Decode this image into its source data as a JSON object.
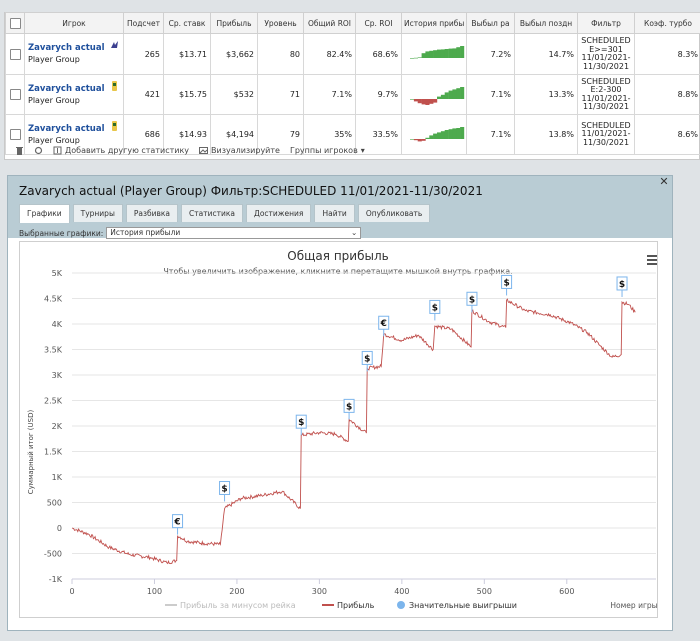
{
  "stats_table": {
    "headers": [
      "Игрок",
      "Подсчет",
      "Ср. ставк",
      "Прибыль",
      "Уровень",
      "Общий ROI",
      "Ср. ROI",
      "История прибы",
      "Выбыл ра",
      "Выбыл поздн",
      "Фильтр",
      "Коэф. турбо"
    ],
    "rows": [
      {
        "player": "Zavarych actual",
        "group": "Player Group",
        "count": "265",
        "avg_stake": "$13.71",
        "profit": "$3,662",
        "level": "80",
        "total_roi": "82.4%",
        "avg_roi": "68.6%",
        "early": "7.2%",
        "late": "14.7%",
        "filter": "SCHEDULED E>=301 11/01/2021-11/30/2021",
        "turbo": "8.3%"
      },
      {
        "player": "Zavarych actual",
        "group": "Player Group",
        "count": "421",
        "avg_stake": "$15.75",
        "profit": "$532",
        "level": "71",
        "total_roi": "7.1%",
        "avg_roi": "9.7%",
        "early": "7.1%",
        "late": "13.3%",
        "filter": "SCHEDULED E:2-300 11/01/2021-11/30/2021",
        "turbo": "8.8%"
      },
      {
        "player": "Zavarych actual",
        "group": "Player Group",
        "count": "686",
        "avg_stake": "$14.93",
        "profit": "$4,194",
        "level": "79",
        "total_roi": "35%",
        "avg_roi": "33.5%",
        "early": "7.1%",
        "late": "13.8%",
        "filter": "SCHEDULED 11/01/2021-11/30/2021",
        "turbo": "8.6%"
      }
    ]
  },
  "toolbar": {
    "add_stats": "Добавить другую статистику",
    "visualize": "Визуализируйте",
    "player_groups": "Группы игроков"
  },
  "panel": {
    "title": "Zavarych actual (Player Group) Фильтр:SCHEDULED 11/01/2021-11/30/2021",
    "tabs": [
      "Графики",
      "Турниры",
      "Разбивка",
      "Статистика",
      "Достижения",
      "Найти",
      "Опубликовать"
    ],
    "active_tab": "Графики",
    "selected_charts_label": "Выбранные графики:",
    "selected_chart": "История прибыли"
  },
  "chart_data": {
    "type": "line",
    "title": "Общая прибыль",
    "subtitle": "Чтобы увеличить изображение, кликните и перетащите мышкой внутрь графика.",
    "ylabel": "Суммарный итог (USD)",
    "xlabel": "Номер игры",
    "ylim": [
      -1000,
      5000
    ],
    "xlim": [
      0,
      690
    ],
    "yticks": [
      "-1K",
      "-500",
      "0",
      "500",
      "1K",
      "1.5K",
      "2K",
      "2.5K",
      "3K",
      "3.5K",
      "4K",
      "4.5K",
      "5K"
    ],
    "xticks": [
      "0",
      "100",
      "200",
      "300",
      "400",
      "500",
      "600"
    ],
    "legend": [
      "Прибыль за минусом рейка",
      "Прибыль",
      "Значительные выигрыши"
    ],
    "legend_position": "bottom",
    "series_color": "#c0504d",
    "markers": [
      {
        "x": 128,
        "y": -130,
        "label": "€"
      },
      {
        "x": 185,
        "y": 520,
        "label": "$"
      },
      {
        "x": 278,
        "y": 1820,
        "label": "$"
      },
      {
        "x": 336,
        "y": 2130,
        "label": "$"
      },
      {
        "x": 358,
        "y": 3070,
        "label": "$"
      },
      {
        "x": 378,
        "y": 3760,
        "label": "€"
      },
      {
        "x": 440,
        "y": 4070,
        "label": "$"
      },
      {
        "x": 485,
        "y": 4230,
        "label": "$"
      },
      {
        "x": 527,
        "y": 4560,
        "label": "$"
      },
      {
        "x": 667,
        "y": 4530,
        "label": "$"
      }
    ],
    "anchors": [
      [
        0,
        0
      ],
      [
        20,
        -120
      ],
      [
        45,
        -380
      ],
      [
        70,
        -520
      ],
      [
        95,
        -580
      ],
      [
        115,
        -680
      ],
      [
        127,
        -640
      ],
      [
        128,
        -150
      ],
      [
        140,
        -260
      ],
      [
        160,
        -300
      ],
      [
        180,
        -320
      ],
      [
        185,
        380
      ],
      [
        205,
        580
      ],
      [
        230,
        640
      ],
      [
        255,
        720
      ],
      [
        277,
        380
      ],
      [
        278,
        1820
      ],
      [
        300,
        1870
      ],
      [
        320,
        1840
      ],
      [
        335,
        1700
      ],
      [
        336,
        2130
      ],
      [
        357,
        1860
      ],
      [
        358,
        3130
      ],
      [
        375,
        3170
      ],
      [
        378,
        3800
      ],
      [
        400,
        3680
      ],
      [
        420,
        3780
      ],
      [
        438,
        3500
      ],
      [
        440,
        3960
      ],
      [
        460,
        3900
      ],
      [
        484,
        3550
      ],
      [
        485,
        4260
      ],
      [
        505,
        4050
      ],
      [
        526,
        3930
      ],
      [
        527,
        4470
      ],
      [
        550,
        4260
      ],
      [
        580,
        4180
      ],
      [
        605,
        4020
      ],
      [
        625,
        3830
      ],
      [
        640,
        3580
      ],
      [
        655,
        3350
      ],
      [
        666,
        3400
      ],
      [
        667,
        4430
      ],
      [
        675,
        4380
      ],
      [
        683,
        4230
      ]
    ]
  },
  "sparklines": [
    {
      "values": [
        0,
        0.02,
        0.05,
        0.4,
        0.55,
        0.6,
        0.65,
        0.7,
        0.72,
        0.75,
        0.78,
        0.8,
        0.9,
        1.0
      ]
    },
    {
      "values": [
        0,
        -0.2,
        -0.35,
        -0.45,
        -0.5,
        -0.4,
        -0.3,
        0.2,
        0.35,
        0.55,
        0.7,
        0.8,
        0.9,
        1.0
      ]
    },
    {
      "values": [
        0,
        -0.1,
        -0.2,
        -0.15,
        0.1,
        0.3,
        0.45,
        0.55,
        0.65,
        0.75,
        0.82,
        0.88,
        0.92,
        1.0
      ]
    }
  ]
}
